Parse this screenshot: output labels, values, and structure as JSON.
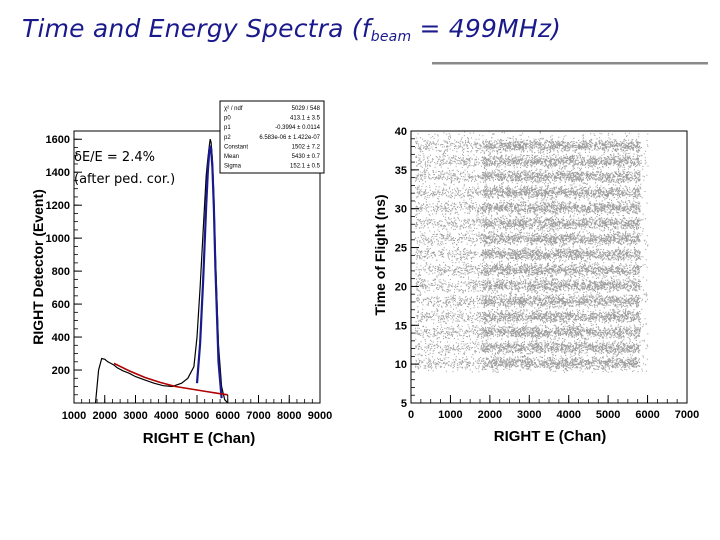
{
  "slide": {
    "title_main": "Time and Energy Spectra (f",
    "title_sub": "beam",
    "title_tail": " = 499MHz)"
  },
  "chart_data": [
    {
      "type": "line",
      "xlabel": "RIGHT E (Chan)",
      "ylabel": "RIGHT Detector (Event)",
      "xlim": [
        1000,
        9000
      ],
      "ylim": [
        0,
        1650
      ],
      "xticks": [
        1000,
        2000,
        3000,
        4000,
        5000,
        6000,
        7000,
        8000,
        9000
      ],
      "yticks": [
        200,
        400,
        600,
        800,
        1000,
        1200,
        1400,
        1600
      ],
      "annotations": [
        "δE/E = 2.4%",
        "(after ped. cor.)"
      ],
      "series": [
        {
          "x": [
            1700,
            1800,
            1900,
            2000,
            2100,
            2200,
            2300,
            2400,
            2600,
            2800,
            3000,
            3300,
            3600,
            3900,
            4200,
            4500,
            4700,
            4900,
            5000,
            5100,
            5200,
            5300,
            5350,
            5400,
            5430,
            5460,
            5500,
            5550,
            5600,
            5700,
            5800,
            5900,
            6000
          ],
          "y": [
            0,
            200,
            270,
            265,
            250,
            240,
            230,
            215,
            195,
            180,
            160,
            140,
            120,
            105,
            100,
            120,
            150,
            220,
            400,
            700,
            1050,
            1380,
            1480,
            1560,
            1600,
            1580,
            1480,
            1250,
            900,
            350,
            100,
            20,
            0
          ]
        },
        {
          "x": [
            5000,
            5100,
            5200,
            5300,
            5350,
            5400,
            5430,
            5460,
            5500,
            5550,
            5600,
            5700,
            5800
          ],
          "y": [
            120,
            360,
            750,
            1200,
            1400,
            1530,
            1560,
            1540,
            1430,
            1180,
            820,
            250,
            30
          ]
        },
        {
          "x": [
            2300,
            2800,
            3300,
            3800,
            4300,
            4800,
            5300,
            5800,
            6000
          ],
          "y": [
            240,
            195,
            155,
            125,
            100,
            85,
            70,
            55,
            50
          ]
        }
      ],
      "stats_box": {
        "labels": [
          "χ² / ndf",
          "p0",
          "p1",
          "p2",
          "Constant",
          "Mean",
          "Sigma"
        ],
        "values": [
          "5029 / 548",
          "413.1 ± 3.5",
          "-0.3994 ± 0.0114",
          "6.583e-06 ± 1.422e-07",
          "1502 ± 7.2",
          "5430 ± 0.7",
          "152.1 ± 0.5"
        ]
      }
    },
    {
      "type": "scatter",
      "xlabel": "RIGHT E (Chan)",
      "ylabel": "Time of Flight (ns)",
      "xlim": [
        0,
        7000
      ],
      "ylim": [
        5,
        40
      ],
      "xticks": [
        0,
        1000,
        2000,
        3000,
        4000,
        5000,
        6000,
        7000
      ],
      "yticks": [
        5,
        10,
        15,
        20,
        25,
        30,
        35,
        40
      ],
      "bands_ns": [
        10.2,
        12.2,
        14.2,
        16.2,
        18.2,
        20.2,
        22.2,
        24.2,
        26.2,
        28.2,
        30.2,
        32.2,
        34.2,
        36.2,
        38.2
      ],
      "band_x_range": [
        100,
        6000
      ],
      "dense_x_range": [
        1800,
        5800
      ]
    }
  ]
}
